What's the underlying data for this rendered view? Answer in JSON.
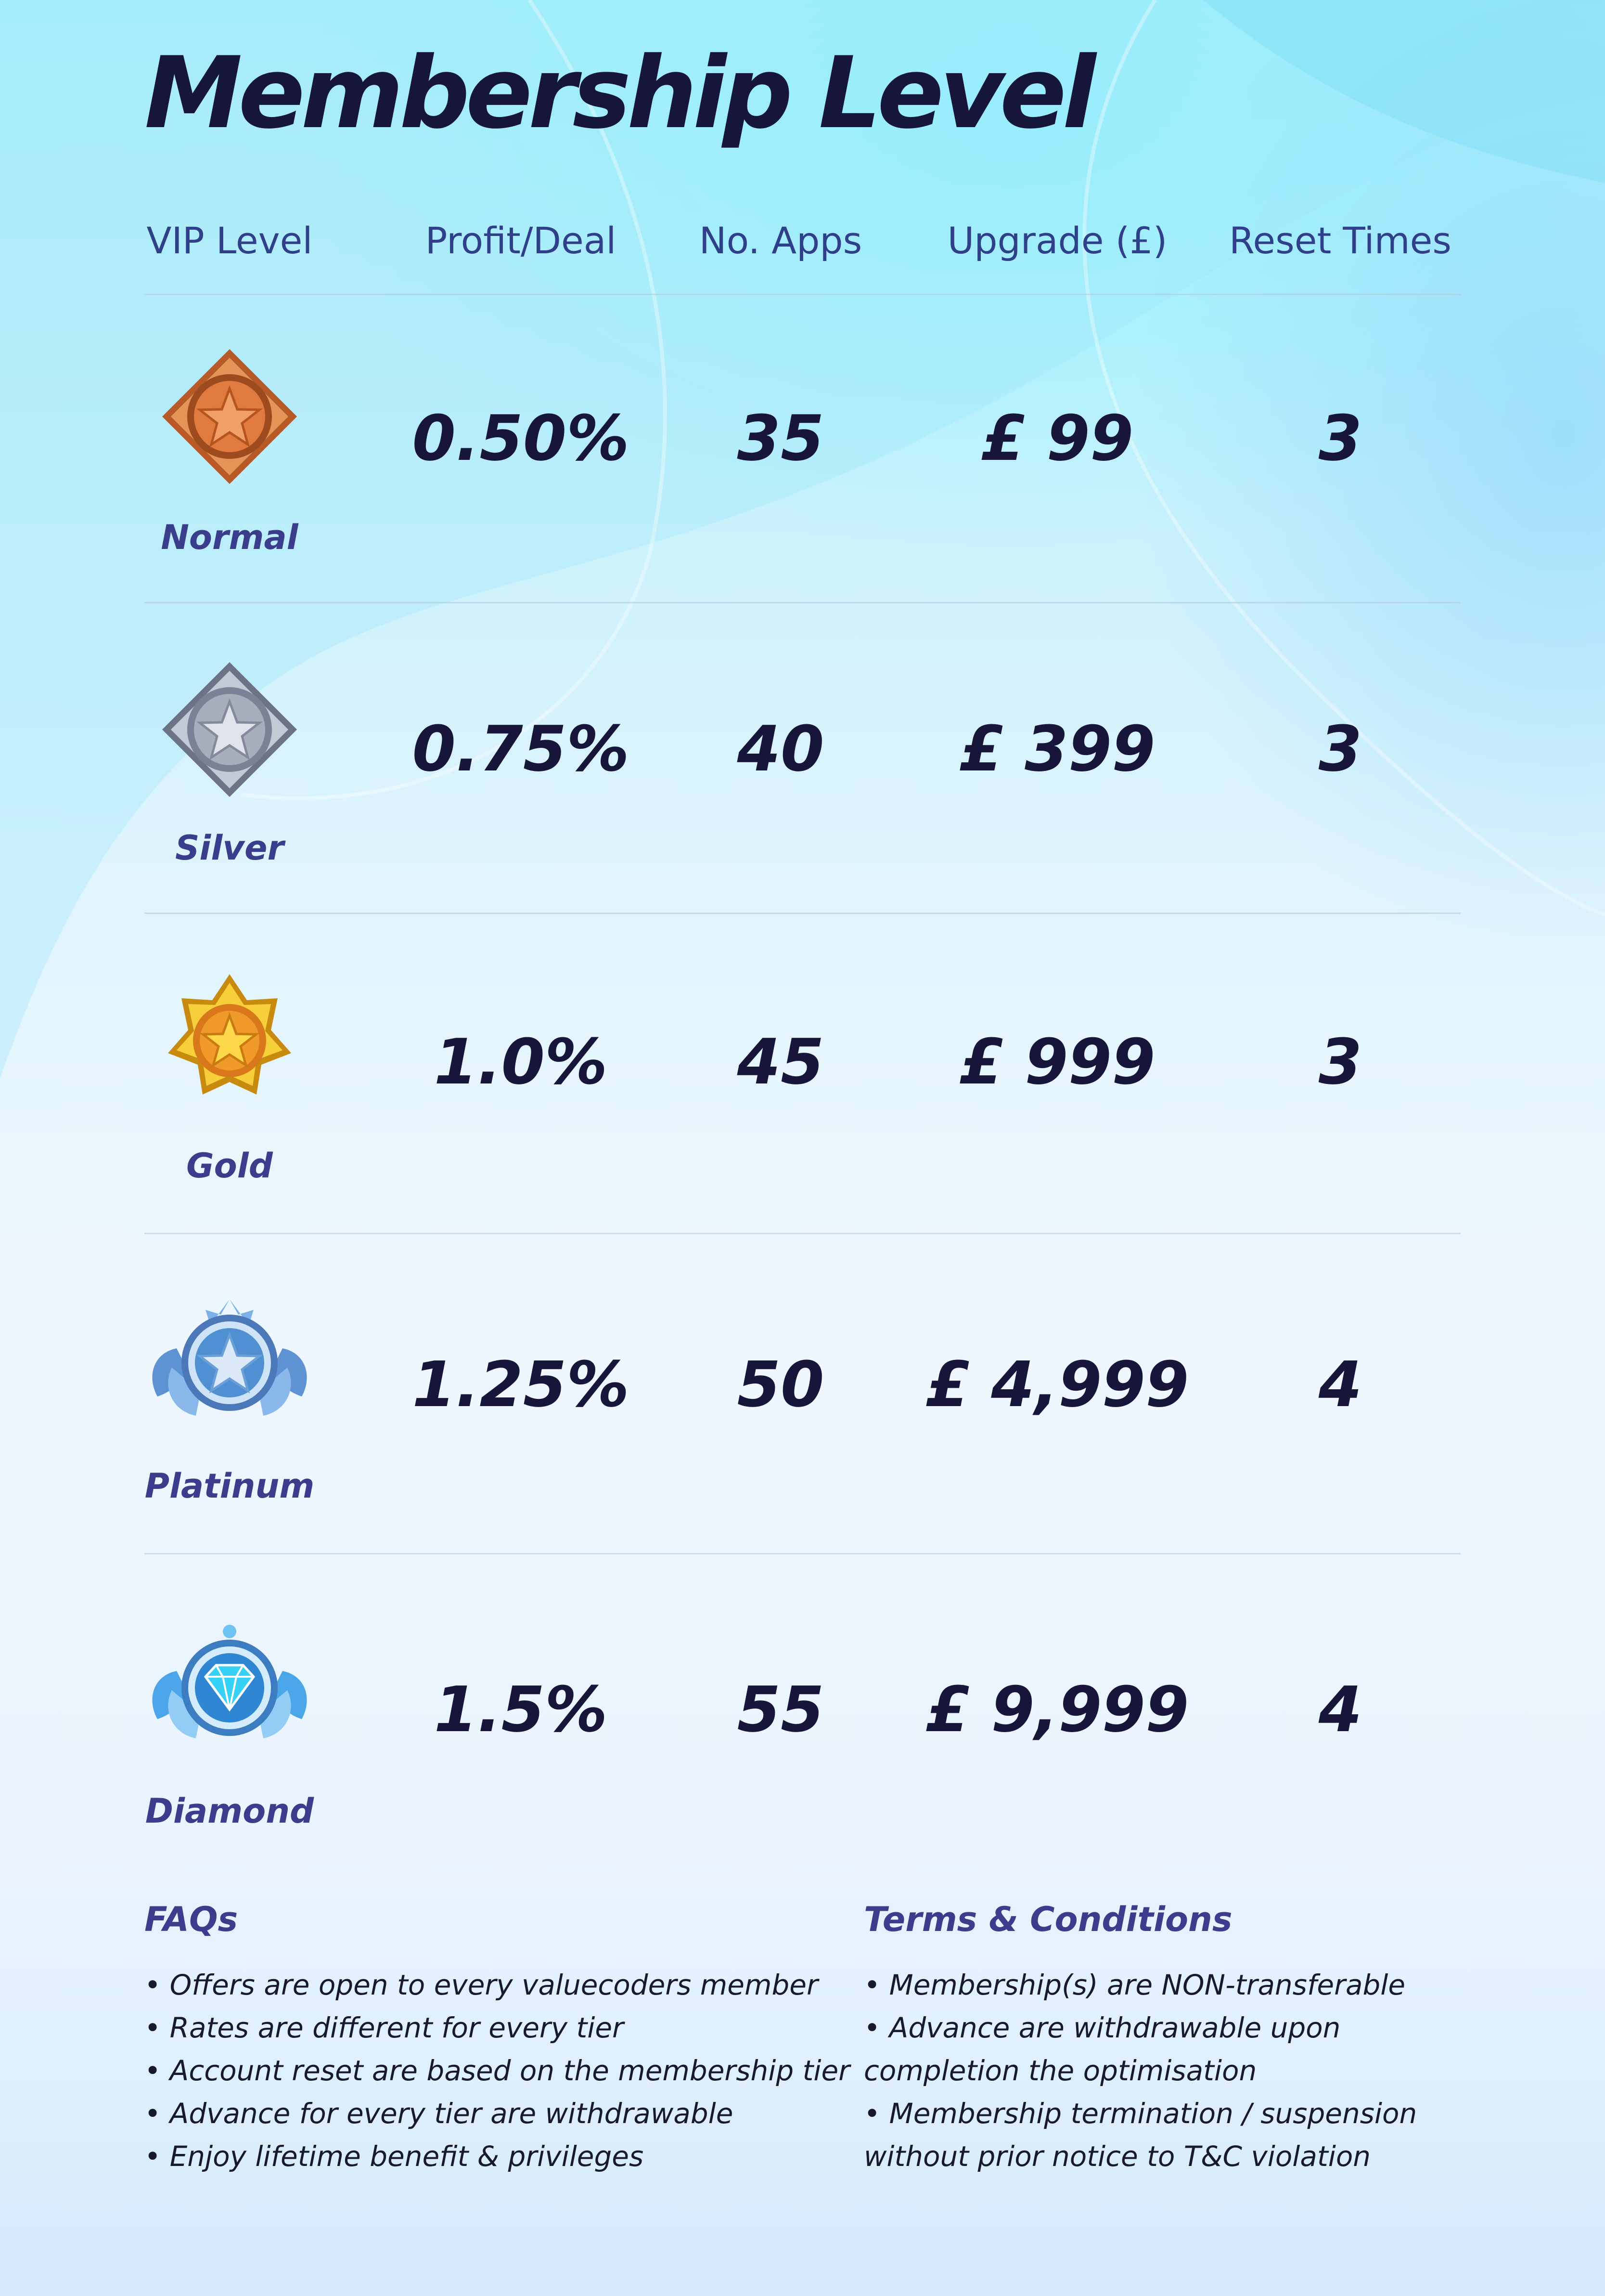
{
  "title": "Membership Level",
  "columns": [
    "VIP Level",
    "Profit/Deal",
    "No. Apps",
    "Upgrade (£)",
    "Reset Times"
  ],
  "tiers": [
    {
      "name": "Normal",
      "profit": "0.50%",
      "apps": "35",
      "upgrade": "£  99",
      "reset": "3",
      "badge_icon": "bronze-star-badge-icon",
      "color": "#c8703a"
    },
    {
      "name": "Silver",
      "profit": "0.75%",
      "apps": "40",
      "upgrade": "£ 399",
      "reset": "3",
      "badge_icon": "silver-star-badge-icon",
      "color": "#a7adbd"
    },
    {
      "name": "Gold",
      "profit": "1.0%",
      "apps": "45",
      "upgrade": "£ 999",
      "reset": "3",
      "badge_icon": "gold-star-badge-icon",
      "color": "#f2b51e"
    },
    {
      "name": "Platinum",
      "profit": "1.25%",
      "apps": "50",
      "upgrade": "£ 4,999",
      "reset": "4",
      "badge_icon": "platinum-winged-badge-icon",
      "color": "#6fa3dc"
    },
    {
      "name": "Diamond",
      "profit": "1.5%",
      "apps": "55",
      "upgrade": "£ 9,999",
      "reset": "4",
      "badge_icon": "diamond-winged-badge-icon",
      "color": "#38b6f0"
    }
  ],
  "faqs": {
    "title": "FAQs",
    "items": [
      "• Offers are open to every valuecoders member",
      "• Rates are different for every tier",
      "• Account reset are based on the membership tier",
      "• Advance for every tier are withdrawable",
      "• Enjoy lifetime benefit & privileges"
    ]
  },
  "terms": {
    "title": "Terms & Conditions",
    "items": [
      "• Membership(s) are NON-transferable",
      "• Advance are withdrawable upon",
      "completion the optimisation",
      "• Membership termination / suspension",
      "without prior notice to T&C violation"
    ]
  }
}
